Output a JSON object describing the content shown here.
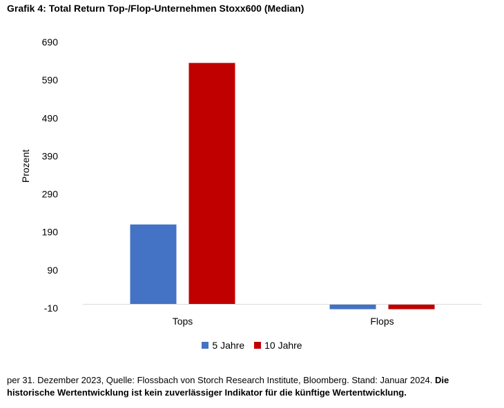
{
  "title": "Grafik 4: Total Return Top-/Flop-Unternehmen Stoxx600 (Median)",
  "footnote": {
    "plain": "per 31. Dezember 2023, Quelle: Flossbach von Storch Research Institute, Bloomberg. Stand: Januar 2024. ",
    "bold": "Die historische Wertentwicklung ist kein zuverlässiger Indikator für die künftige Wertentwicklung."
  },
  "chart_data": {
    "type": "bar",
    "title": "Grafik 4: Total Return Top-/Flop-Unternehmen Stoxx600 (Median)",
    "ylabel": "Prozent",
    "xlabel": "",
    "categories": [
      "Tops",
      "Flops"
    ],
    "series": [
      {
        "name": "5 Jahre",
        "color": "#4472C4",
        "values": [
          210,
          -13
        ]
      },
      {
        "name": "10 Jahre",
        "color": "#C00000",
        "values": [
          635,
          -13
        ]
      }
    ],
    "ylim": [
      -10,
      690
    ],
    "yticks": [
      "690",
      "590",
      "490",
      "390",
      "290",
      "190",
      "90",
      "-10"
    ],
    "legend_position": "bottom",
    "grid": false
  }
}
